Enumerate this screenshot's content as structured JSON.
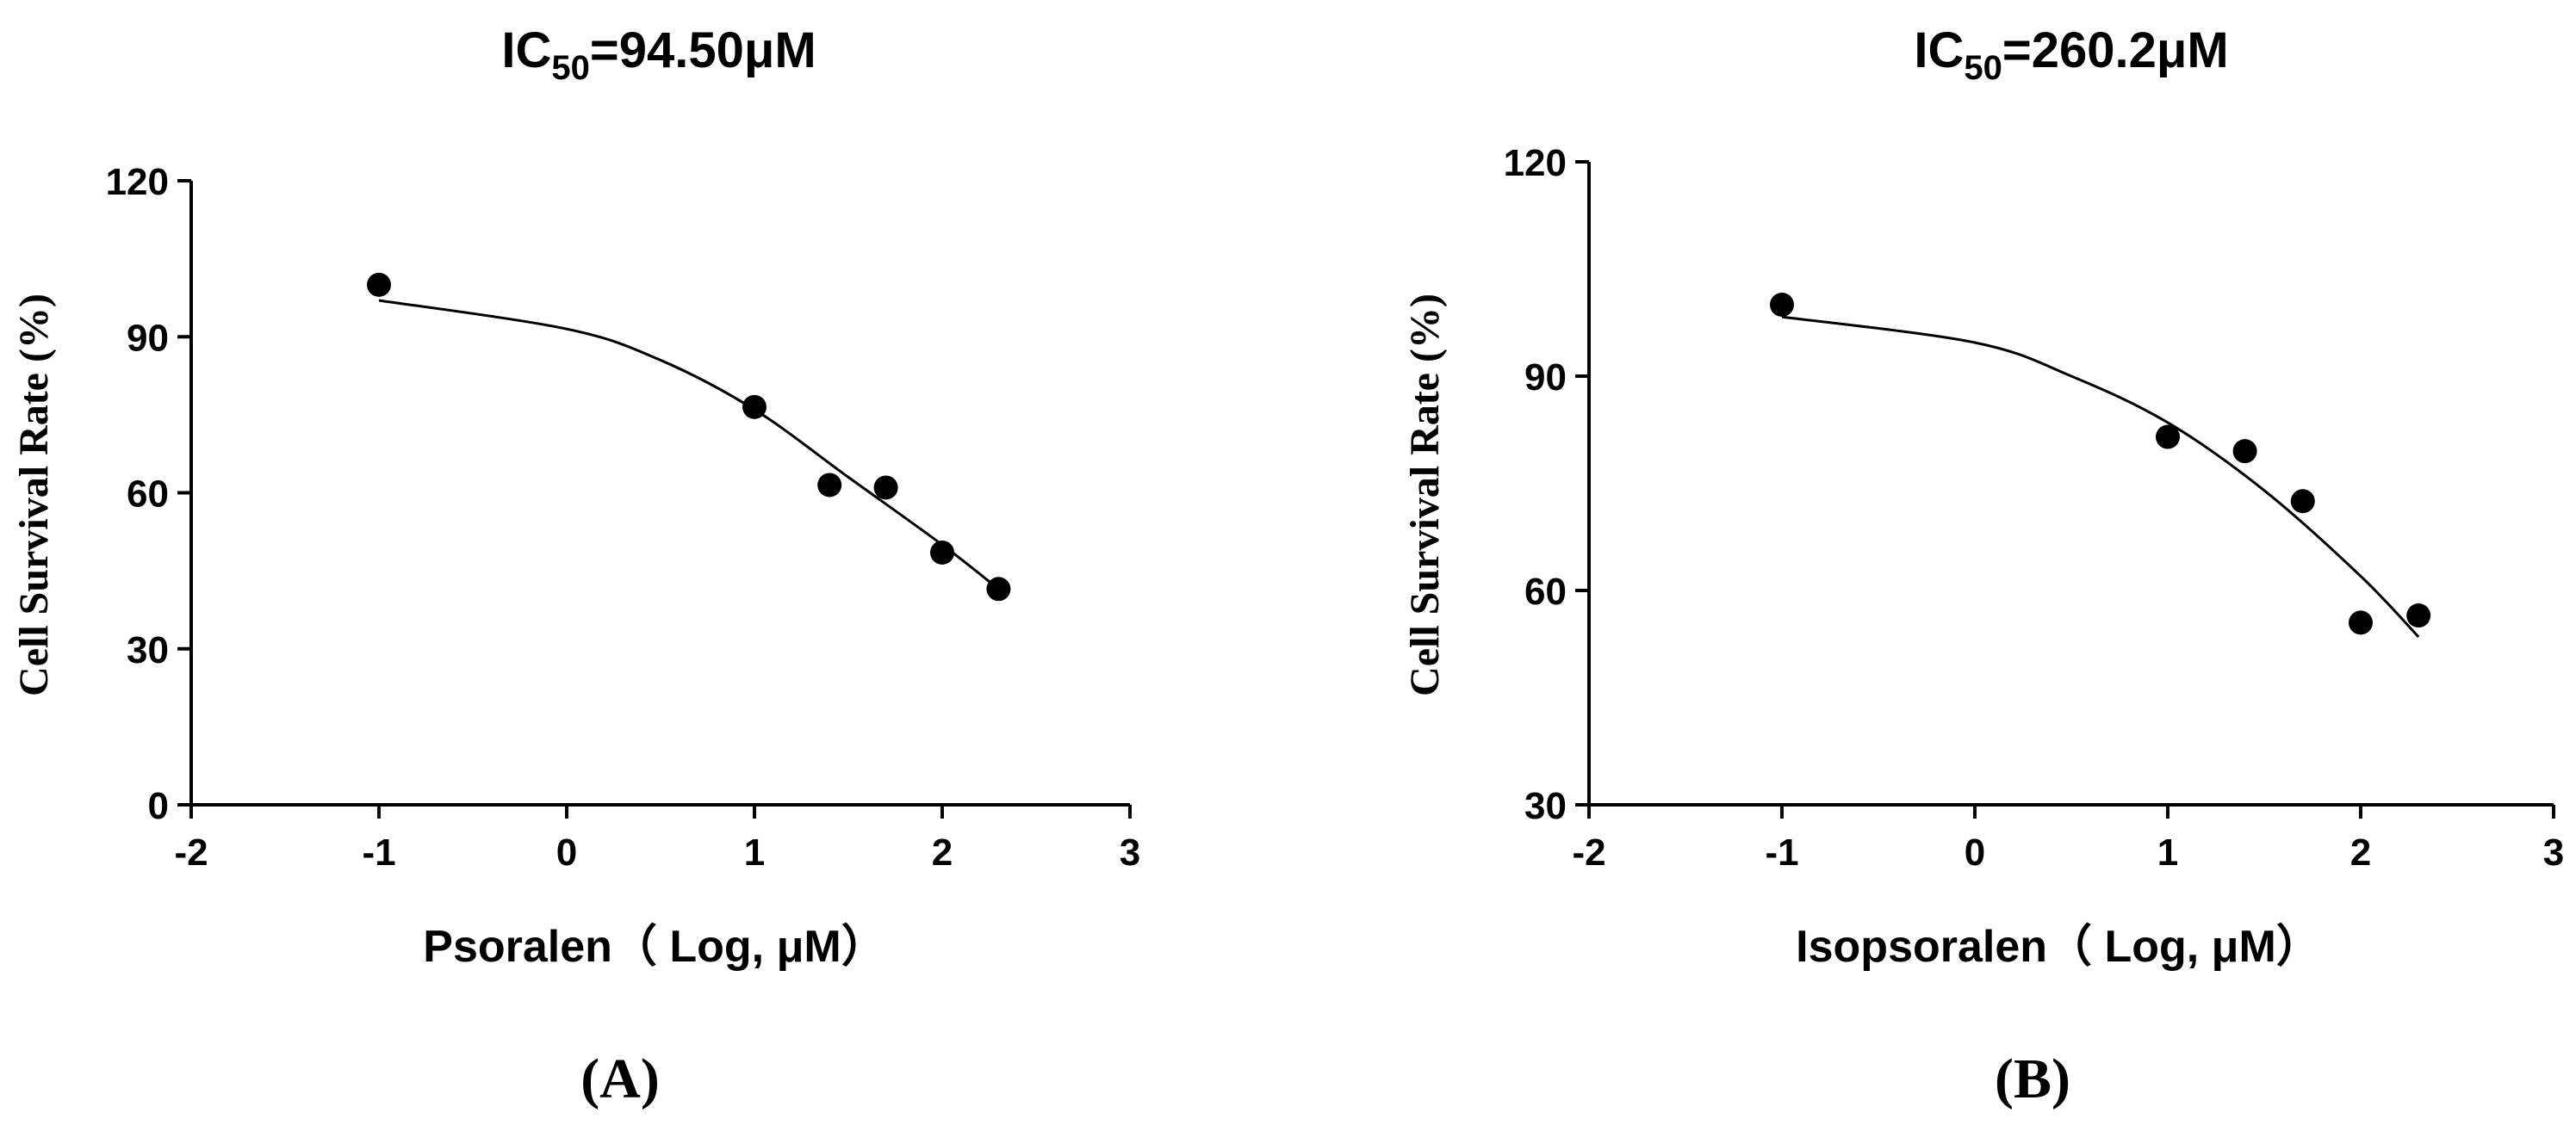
{
  "chart_data": [
    {
      "type": "scatter",
      "panel_label": "(A)",
      "title": {
        "prefix": "IC",
        "sub": "50",
        "suffix": "=94.50μM"
      },
      "xlabel": "Psoralen（ Log, μM）",
      "ylabel": "Cell Survival Rate (%)",
      "xlim": [
        -2,
        3
      ],
      "ylim": [
        0,
        120
      ],
      "xticks": [
        "-2",
        "-1",
        "0",
        "1",
        "2",
        "3"
      ],
      "yticks": [
        "0",
        "30",
        "60",
        "90",
        "120"
      ],
      "grid": false,
      "points": [
        {
          "x": -1.0,
          "y": 100.0
        },
        {
          "x": 1.0,
          "y": 76.5
        },
        {
          "x": 1.4,
          "y": 61.5
        },
        {
          "x": 1.7,
          "y": 61.0
        },
        {
          "x": 2.0,
          "y": 48.5
        },
        {
          "x": 2.3,
          "y": 41.5
        }
      ],
      "fit_curve": [
        {
          "x": -1.0,
          "y": 97.0
        },
        {
          "x": 0.0,
          "y": 91.5
        },
        {
          "x": 0.5,
          "y": 85.5
        },
        {
          "x": 1.0,
          "y": 76.0
        },
        {
          "x": 1.5,
          "y": 63.0
        },
        {
          "x": 2.0,
          "y": 50.0
        },
        {
          "x": 2.3,
          "y": 41.5
        }
      ]
    },
    {
      "type": "scatter",
      "panel_label": "(B)",
      "title": {
        "prefix": "IC",
        "sub": "50",
        "suffix": "=260.2μM"
      },
      "xlabel": "Isopsoralen（ Log, μM）",
      "ylabel": "Cell Survival Rate (%)",
      "xlim": [
        -2,
        3
      ],
      "ylim": [
        30,
        120
      ],
      "xticks": [
        "-2",
        "-1",
        "0",
        "1",
        "2",
        "3"
      ],
      "yticks": [
        "30",
        "60",
        "90",
        "120"
      ],
      "grid": false,
      "points": [
        {
          "x": -1.0,
          "y": 100.0
        },
        {
          "x": 1.0,
          "y": 81.5
        },
        {
          "x": 1.4,
          "y": 79.5
        },
        {
          "x": 1.7,
          "y": 72.5
        },
        {
          "x": 2.0,
          "y": 55.5
        },
        {
          "x": 2.3,
          "y": 56.5
        }
      ],
      "fit_curve": [
        {
          "x": -1.0,
          "y": 98.3
        },
        {
          "x": 0.0,
          "y": 94.7
        },
        {
          "x": 0.5,
          "y": 90.0
        },
        {
          "x": 1.0,
          "y": 83.5
        },
        {
          "x": 1.5,
          "y": 74.0
        },
        {
          "x": 2.0,
          "y": 62.0
        },
        {
          "x": 2.3,
          "y": 53.5
        }
      ]
    }
  ]
}
